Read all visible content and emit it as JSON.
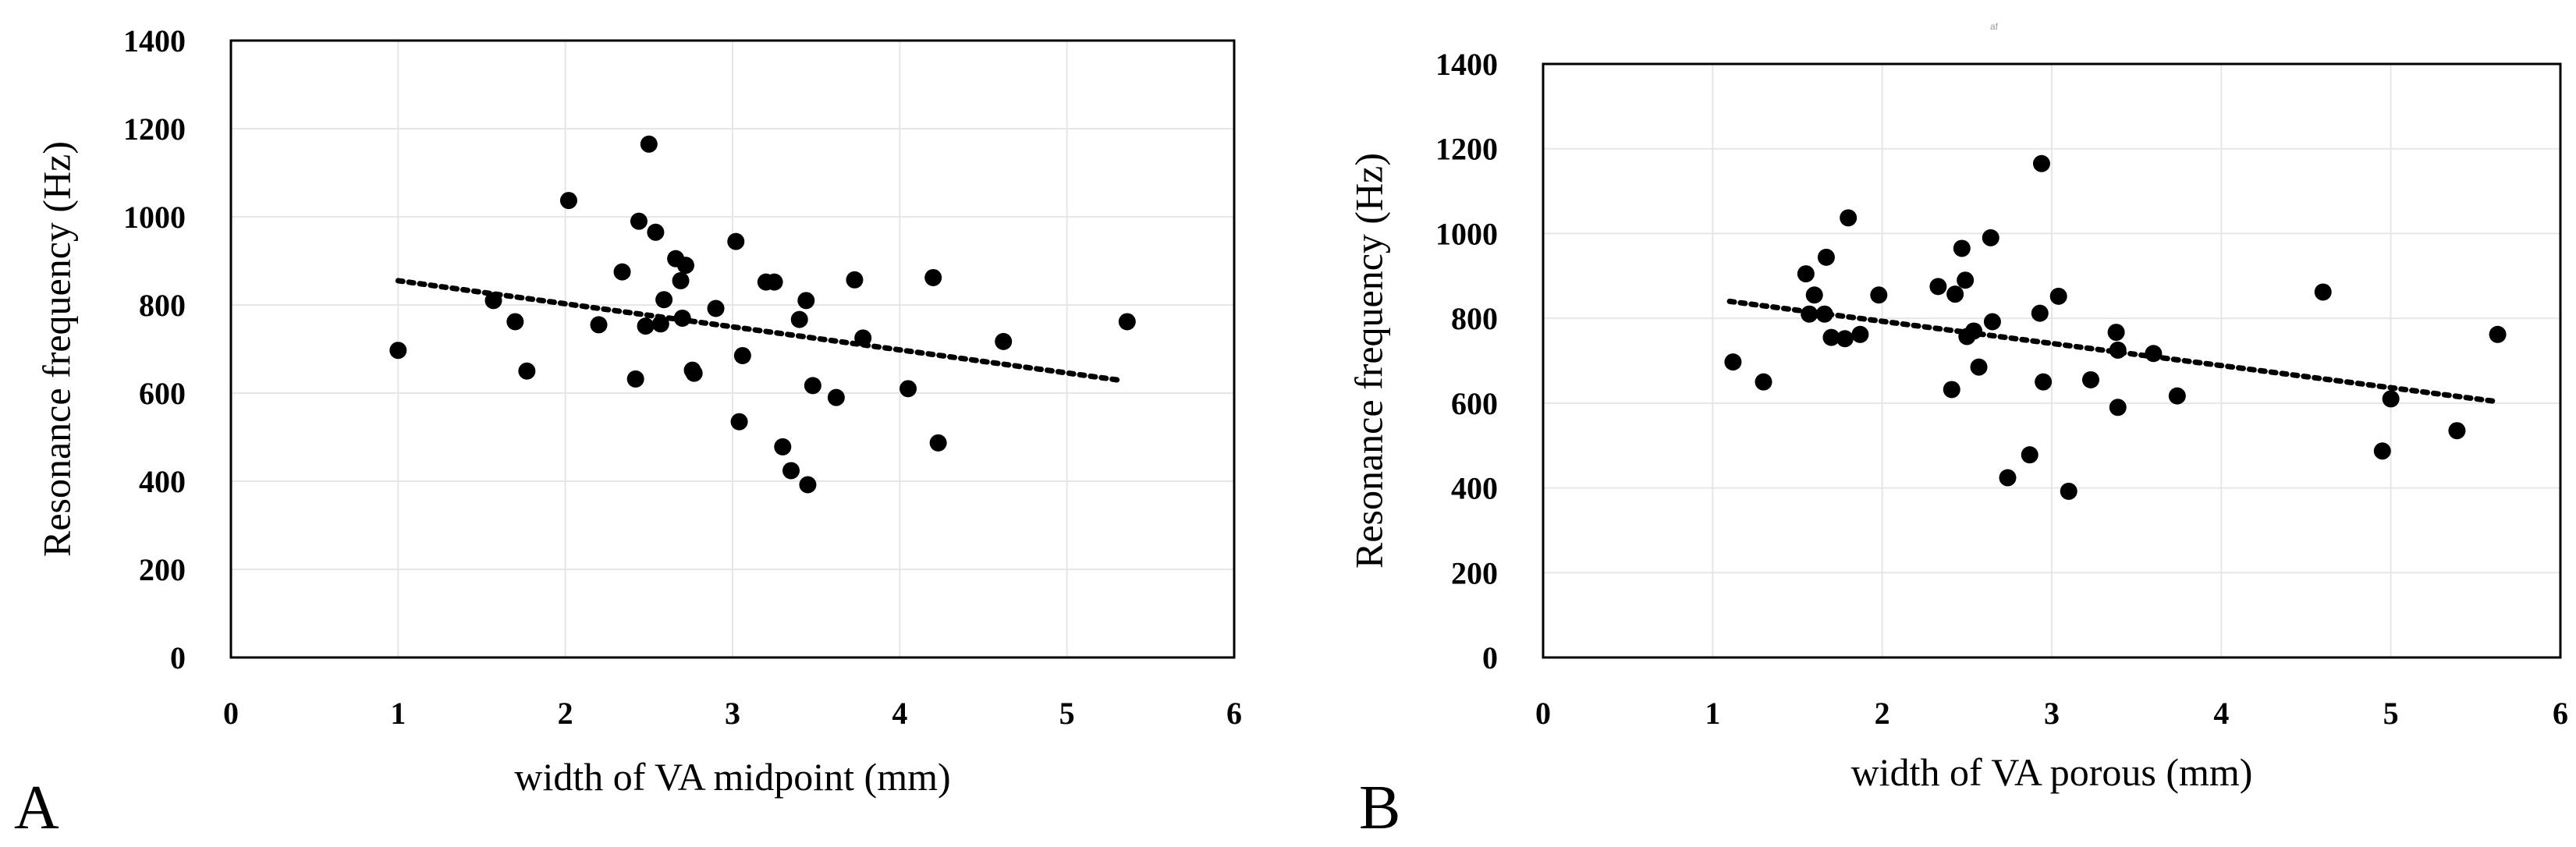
{
  "chart_data": [
    {
      "type": "scatter",
      "panel_label": "A",
      "title": "",
      "xlabel": "width of VA midpoint (mm)",
      "ylabel": "Resonance frequency (Hz)",
      "xlim": [
        0,
        6
      ],
      "ylim": [
        0,
        1400
      ],
      "xticks": [
        "0",
        "1",
        "2",
        "3",
        "4",
        "5",
        "6"
      ],
      "yticks": [
        "0",
        "200",
        "400",
        "600",
        "800",
        "1000",
        "1200",
        "1400"
      ],
      "grid": true,
      "legend": "none",
      "trendline": {
        "style": "dotted",
        "x": [
          1.0,
          5.3
        ],
        "y": [
          855,
          630
        ]
      },
      "points": [
        [
          1.0,
          697
        ],
        [
          1.57,
          810
        ],
        [
          1.7,
          762
        ],
        [
          1.77,
          650
        ],
        [
          2.02,
          1037
        ],
        [
          2.2,
          755
        ],
        [
          2.34,
          875
        ],
        [
          2.42,
          632
        ],
        [
          2.44,
          990
        ],
        [
          2.48,
          752
        ],
        [
          2.5,
          1165
        ],
        [
          2.54,
          965
        ],
        [
          2.57,
          757
        ],
        [
          2.59,
          812
        ],
        [
          2.66,
          905
        ],
        [
          2.69,
          855
        ],
        [
          2.7,
          770
        ],
        [
          2.72,
          890
        ],
        [
          2.76,
          652
        ],
        [
          2.77,
          645
        ],
        [
          2.9,
          792
        ],
        [
          3.02,
          944
        ],
        [
          3.04,
          535
        ],
        [
          3.06,
          685
        ],
        [
          3.2,
          852
        ],
        [
          3.25,
          852
        ],
        [
          3.3,
          478
        ],
        [
          3.35,
          424
        ],
        [
          3.4,
          767
        ],
        [
          3.44,
          810
        ],
        [
          3.45,
          392
        ],
        [
          3.48,
          617
        ],
        [
          3.62,
          590
        ],
        [
          3.73,
          857
        ],
        [
          3.78,
          725
        ],
        [
          4.05,
          610
        ],
        [
          4.2,
          862
        ],
        [
          4.23,
          487
        ],
        [
          4.62,
          717
        ],
        [
          5.36,
          762
        ]
      ]
    },
    {
      "type": "scatter",
      "panel_label": "B",
      "title": "",
      "xlabel": "width of VA porous (mm)",
      "ylabel": "Resonance frequency (Hz)",
      "xlim": [
        0,
        6
      ],
      "ylim": [
        0,
        1400
      ],
      "xticks": [
        "0",
        "1",
        "2",
        "3",
        "4",
        "5",
        "6"
      ],
      "yticks": [
        "0",
        "200",
        "400",
        "600",
        "800",
        "1000",
        "1200",
        "1400"
      ],
      "grid": true,
      "legend": "none",
      "trendline": {
        "style": "dotted",
        "x": [
          1.1,
          5.6
        ],
        "y": [
          840,
          605
        ]
      },
      "points": [
        [
          1.12,
          697
        ],
        [
          1.3,
          650
        ],
        [
          1.55,
          905
        ],
        [
          1.57,
          810
        ],
        [
          1.6,
          855
        ],
        [
          1.66,
          810
        ],
        [
          1.67,
          944
        ],
        [
          1.7,
          755
        ],
        [
          1.78,
          752
        ],
        [
          1.8,
          1037
        ],
        [
          1.87,
          762
        ],
        [
          1.98,
          855
        ],
        [
          2.33,
          875
        ],
        [
          2.41,
          632
        ],
        [
          2.43,
          857
        ],
        [
          2.47,
          965
        ],
        [
          2.49,
          890
        ],
        [
          2.5,
          757
        ],
        [
          2.54,
          770
        ],
        [
          2.57,
          685
        ],
        [
          2.64,
          990
        ],
        [
          2.65,
          792
        ],
        [
          2.87,
          478
        ],
        [
          2.93,
          812
        ],
        [
          2.94,
          1165
        ],
        [
          2.95,
          650
        ],
        [
          3.04,
          852
        ],
        [
          2.74,
          424
        ],
        [
          3.1,
          392
        ],
        [
          3.23,
          655
        ],
        [
          3.38,
          767
        ],
        [
          3.39,
          725
        ],
        [
          3.39,
          590
        ],
        [
          3.6,
          717
        ],
        [
          3.74,
          617
        ],
        [
          4.6,
          862
        ],
        [
          4.95,
          487
        ],
        [
          5.0,
          610
        ],
        [
          5.39,
          535
        ],
        [
          5.63,
          762
        ]
      ]
    }
  ],
  "stray_mark": "af"
}
